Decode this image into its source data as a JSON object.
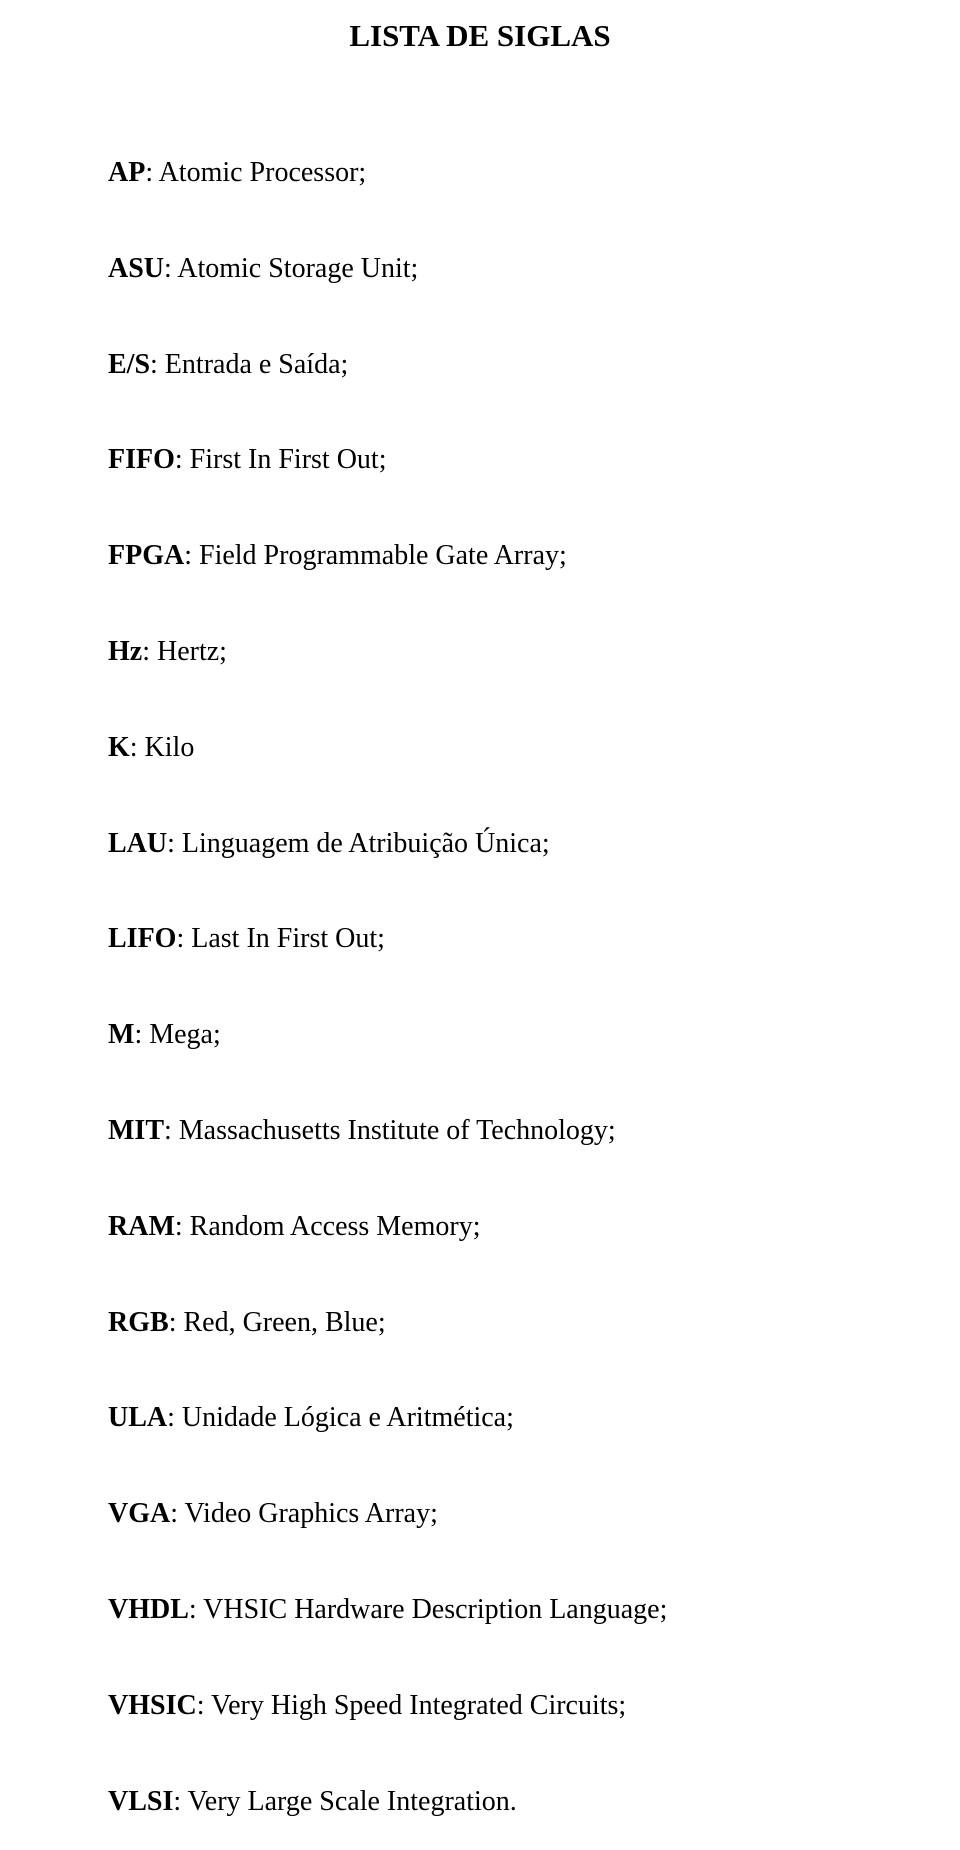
{
  "title": "LISTA DE SIGLAS",
  "colors": {
    "background": "#ffffff",
    "text": "#000000"
  },
  "typography": {
    "font_family": "Times New Roman",
    "title_fontsize": 31,
    "title_fontweight": "bold",
    "entry_fontsize": 28,
    "abbr_fontweight": "bold"
  },
  "entries": [
    {
      "abbr": "AP",
      "definition": ": Atomic Processor;"
    },
    {
      "abbr": "ASU",
      "definition": ": Atomic Storage Unit;"
    },
    {
      "abbr": "E/S",
      "definition": ": Entrada e Saída;"
    },
    {
      "abbr": "FIFO",
      "definition": ": First In First Out;"
    },
    {
      "abbr": "FPGA",
      "definition": ": Field Programmable Gate Array;"
    },
    {
      "abbr": "Hz",
      "definition": ": Hertz;"
    },
    {
      "abbr": "K",
      "definition": ": Kilo"
    },
    {
      "abbr": "LAU",
      "definition": ": Linguagem de Atribuição Única;"
    },
    {
      "abbr": "LIFO",
      "definition": ": Last In First Out;"
    },
    {
      "abbr": "M",
      "definition": ": Mega;"
    },
    {
      "abbr": "MIT",
      "definition": ": Massachusetts Institute of Technology;"
    },
    {
      "abbr": "RAM",
      "definition": ": Random Access Memory;"
    },
    {
      "abbr": "RGB",
      "definition": ": Red, Green, Blue;"
    },
    {
      "abbr": "ULA",
      "definition": ": Unidade Lógica e Aritmética;"
    },
    {
      "abbr": "VGA",
      "definition": ": Video Graphics Array;"
    },
    {
      "abbr": "VHDL",
      "definition": ": VHSIC Hardware Description Language;"
    },
    {
      "abbr": "VHSIC",
      "definition": ": Very High Speed Integrated Circuits;"
    },
    {
      "abbr": "VLSI",
      "definition": ": Very Large Scale Integration."
    }
  ]
}
